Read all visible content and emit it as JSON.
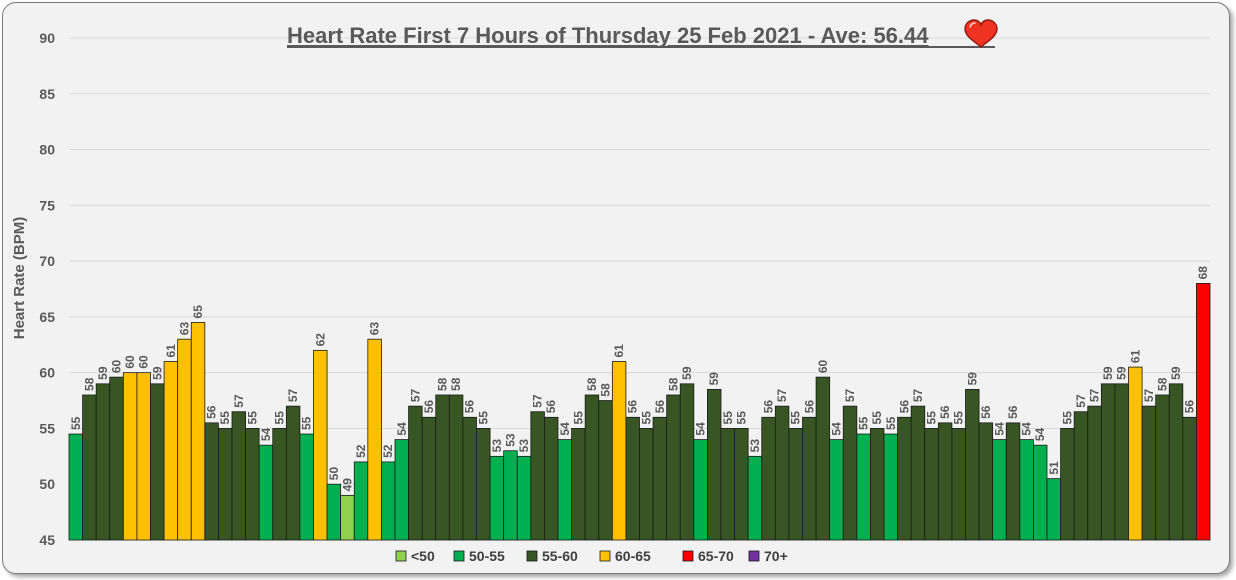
{
  "chart_data": {
    "type": "bar",
    "title": "Heart Rate First 7 Hours of Thursday 25 Feb 2021 - Ave: 56.44",
    "title_icon": "heart-icon",
    "xlabel": "",
    "ylabel": "Heart Rate (BPM)",
    "ylim": [
      45,
      90
    ],
    "yticks": [
      45,
      50,
      55,
      60,
      65,
      70,
      75,
      80,
      85,
      90
    ],
    "grid": true,
    "legend_position": "bottom",
    "values": [
      54.5,
      58,
      59,
      59.6,
      60,
      60,
      59,
      61,
      63,
      64.5,
      55.5,
      55,
      56.5,
      55,
      53.5,
      55,
      57,
      54.5,
      62,
      50,
      49,
      52,
      63,
      52,
      54,
      57,
      56,
      58,
      58,
      56,
      55,
      52.5,
      53,
      52.5,
      56.5,
      56,
      54,
      55,
      58,
      57.5,
      61,
      56,
      55,
      56,
      58,
      59,
      54,
      58.5,
      55,
      55,
      52.5,
      56,
      57,
      55,
      56,
      59.6,
      54,
      57,
      54.5,
      55,
      54.5,
      56,
      57,
      55,
      55.5,
      55,
      58.5,
      55.5,
      54,
      55.5,
      54,
      53.5,
      50.5,
      55,
      56.5,
      57,
      59,
      59,
      60.5,
      57,
      58,
      59,
      56,
      68
    ],
    "labels": [
      "55",
      "58",
      "59",
      "60",
      "60",
      "60",
      "59",
      "61",
      "63",
      "65",
      "56",
      "55",
      "57",
      "55",
      "54",
      "55",
      "57",
      "55",
      "62",
      "50",
      "49",
      "52",
      "63",
      "52",
      "54",
      "57",
      "56",
      "58",
      "58",
      "56",
      "55",
      "53",
      "53",
      "53",
      "57",
      "56",
      "54",
      "55",
      "58",
      "58",
      "61",
      "56",
      "55",
      "56",
      "58",
      "59",
      "54",
      "59",
      "55",
      "55",
      "53",
      "56",
      "57",
      "55",
      "56",
      "60",
      "54",
      "57",
      "55",
      "55",
      "55",
      "56",
      "57",
      "55",
      "56",
      "55",
      "59",
      "56",
      "54",
      "56",
      "54",
      "54",
      "51",
      "55",
      "57",
      "57",
      "59",
      "59",
      "61",
      "57",
      "58",
      "59",
      "56",
      "68"
    ],
    "legend": [
      {
        "label": "<50",
        "color": "#92d050"
      },
      {
        "label": "50-55",
        "color": "#00b050"
      },
      {
        "label": "55-60",
        "color": "#375623"
      },
      {
        "label": "60-65",
        "color": "#ffc000"
      },
      {
        "label": "65-70",
        "color": "#ff0000"
      },
      {
        "label": "70+",
        "color": "#7030a0"
      }
    ]
  }
}
